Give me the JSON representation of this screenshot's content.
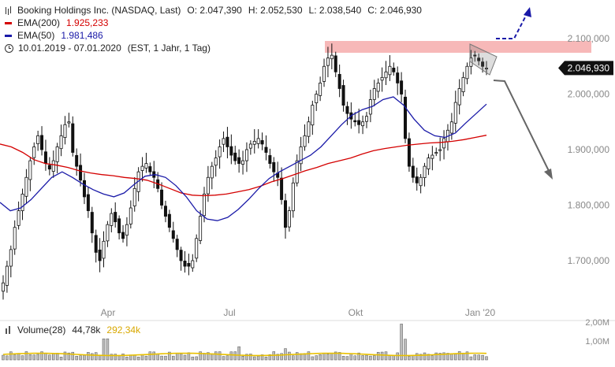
{
  "legend": {
    "instrument": "Booking Holdings Inc. (NASDAQ, Last)",
    "open": "O: 2.047,390",
    "high": "H: 2.052,530",
    "low": "L: 2.038,540",
    "close": "C: 2.046,930",
    "ema200_label": "EMA(200)",
    "ema200_value": "1.925,233",
    "ema50_label": "EMA(50)",
    "ema50_value": "1.981,486",
    "range": "10.01.2019 - 07.01.2020",
    "settings": "(EST, 1 Jahr, 1 Tag)"
  },
  "volume_legend": {
    "label": "Volume(28)",
    "value": "44,78k",
    "avg": "292,34k"
  },
  "colors": {
    "ema200": "#d40000",
    "ema50": "#1a1aa8",
    "resistance_band": "#f7b8b8",
    "arrow_up": "#1a1aa8",
    "arrow_down": "#666666",
    "volume_avg": "#e8c000",
    "price_tag_bg": "#111111"
  },
  "chart_data": {
    "type": "candlestick",
    "title": "Booking Holdings Inc. (NASDAQ, Last)",
    "x_range": [
      "2019-01-10",
      "2020-01-07"
    ],
    "x_ticks": [
      "Apr",
      "Jul",
      "Okt",
      "Jan '20"
    ],
    "ylim": [
      1640000,
      2110000
    ],
    "y_ticks": [
      1700000,
      1800000,
      1900000,
      2000000,
      2100000
    ],
    "y_tick_labels": [
      "1.700,000",
      "1.800,000",
      "1.900,000",
      "2.000,000",
      "2.100,000"
    ],
    "last_price_label": "2.046,930",
    "grid": false,
    "series": [
      {
        "name": "Close (approx.)",
        "values": [
          1660000,
          1690000,
          1720000,
          1760000,
          1790000,
          1820000,
          1850000,
          1880000,
          1905000,
          1925000,
          1900000,
          1875000,
          1865000,
          1880000,
          1905000,
          1925000,
          1945000,
          1950000,
          1895000,
          1870000,
          1845000,
          1815000,
          1790000,
          1750000,
          1715000,
          1700000,
          1735000,
          1765000,
          1785000,
          1770000,
          1750000,
          1740000,
          1765000,
          1795000,
          1830000,
          1860000,
          1870000,
          1875000,
          1860000,
          1850000,
          1830000,
          1800000,
          1780000,
          1760000,
          1740000,
          1720000,
          1700000,
          1690000,
          1690000,
          1700000,
          1740000,
          1780000,
          1820000,
          1850000,
          1870000,
          1885000,
          1905000,
          1920000,
          1905000,
          1890000,
          1880000,
          1875000,
          1880000,
          1900000,
          1910000,
          1915000,
          1920000,
          1910000,
          1895000,
          1875000,
          1860000,
          1850000,
          1810000,
          1760000,
          1790000,
          1840000,
          1880000,
          1905000,
          1925000,
          1950000,
          1980000,
          2000000,
          2020000,
          2050000,
          2065000,
          2070000,
          2040000,
          2010000,
          1980000,
          1965000,
          1955000,
          1950000,
          1945000,
          1950000,
          1960000,
          1990000,
          2010000,
          2020000,
          2030000,
          2040000,
          2050000,
          2040000,
          2020000,
          2000000,
          1920000,
          1870000,
          1850000,
          1840000,
          1850000,
          1870000,
          1885000,
          1890000,
          1895000,
          1900000,
          1920000,
          1935000,
          1950000,
          1985000,
          2010000,
          2030000,
          2050000,
          2065000,
          2070000,
          2060000,
          2050000,
          2046930
        ]
      },
      {
        "name": "EMA(200)",
        "values": [
          1910000,
          1905000,
          1895000,
          1882000,
          1875000,
          1872000,
          1868000,
          1862000,
          1858000,
          1855000,
          1853000,
          1850000,
          1848000,
          1845000,
          1838000,
          1830000,
          1822000,
          1818000,
          1817000,
          1818000,
          1820000,
          1824000,
          1828000,
          1834000,
          1842000,
          1848000,
          1855000,
          1862000,
          1868000,
          1875000,
          1880000,
          1885000,
          1892000,
          1898000,
          1902000,
          1905000,
          1908000,
          1910000,
          1912000,
          1913000,
          1915000,
          1918000,
          1922000,
          1926000
        ]
      },
      {
        "name": "EMA(50)",
        "values": [
          1805000,
          1790000,
          1795000,
          1810000,
          1830000,
          1850000,
          1860000,
          1850000,
          1838000,
          1828000,
          1820000,
          1815000,
          1822000,
          1838000,
          1852000,
          1855000,
          1850000,
          1835000,
          1815000,
          1790000,
          1775000,
          1772000,
          1778000,
          1792000,
          1810000,
          1830000,
          1848000,
          1860000,
          1870000,
          1880000,
          1890000,
          1905000,
          1925000,
          1945000,
          1962000,
          1972000,
          1978000,
          1990000,
          1995000,
          1980000,
          1955000,
          1935000,
          1925000,
          1922000,
          1930000,
          1948000,
          1965000,
          1982000
        ]
      }
    ],
    "annotations": [
      {
        "type": "band",
        "label": "",
        "y_range": [
          2065000,
          2085000
        ],
        "x_range": [
          "2019-08-20",
          "2020-01-31"
        ]
      },
      {
        "type": "arrow",
        "direction": "up-dashed",
        "color": "blue"
      },
      {
        "type": "arrow",
        "direction": "down",
        "color": "grey"
      },
      {
        "type": "triangle",
        "note": "consolidation wedge at recent highs"
      }
    ],
    "volume": {
      "ylim": [
        0,
        2000000
      ],
      "y_ticks": [
        1000000,
        2000000
      ],
      "y_tick_labels": [
        "1,00M",
        "2,00M"
      ],
      "average_line": 292340,
      "last": 44780
    }
  }
}
